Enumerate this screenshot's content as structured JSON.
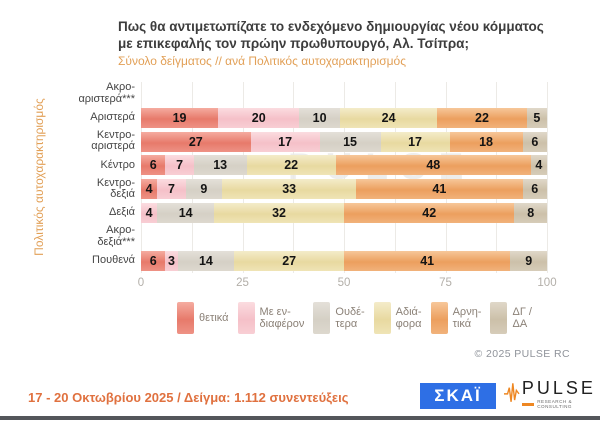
{
  "title": {
    "lines": [
      "Πως θα αντιμετωπίζατε το ενδεχόμενο δημιουργίας νέου κόμματος",
      "με επικεφαλής τον πρώην πρωθυπουργό, Αλ. Τσίπρα;"
    ],
    "subtitle": "Σύνολο δείγματος // ανά Πολιτικός αυτοχαρακτηρισμός"
  },
  "chart_data": {
    "type": "bar",
    "stacked": true,
    "orientation": "horizontal",
    "ylabel": "Πολιτικός αυτοχαρακτηρισμός",
    "xlim": [
      0,
      100
    ],
    "x_ticks": [
      0,
      25,
      50,
      75,
      100
    ],
    "grid_interval": 12.5,
    "grid": true,
    "legend_position": "bottom",
    "categories": [
      {
        "name": "Ακρο-αριστερά***",
        "lines": [
          "Ακρο-",
          "αριστερά***"
        ]
      },
      {
        "name": "Αριστερά",
        "lines": [
          "Αριστερά"
        ]
      },
      {
        "name": "Κεντρο-αριστερά",
        "lines": [
          "Κεντρο-",
          "αριστερά"
        ]
      },
      {
        "name": "Κέντρο",
        "lines": [
          "Κέντρο"
        ]
      },
      {
        "name": "Κεντρο-δεξιά",
        "lines": [
          "Κεντρο-",
          "δεξιά"
        ]
      },
      {
        "name": "Δεξιά",
        "lines": [
          "Δεξιά"
        ]
      },
      {
        "name": "Ακρο-δεξιά***",
        "lines": [
          "Ακρο-",
          "δεξιά***"
        ]
      },
      {
        "name": "Πουθενά",
        "lines": [
          "Πουθενά"
        ]
      }
    ],
    "series": [
      {
        "name": "θετικά",
        "legend_lines": [
          "θετικά"
        ],
        "colors": [
          "#F5ACA0",
          "#E77A6B",
          "#EE9285"
        ],
        "values": [
          null,
          19,
          27,
          6,
          4,
          null,
          null,
          6
        ]
      },
      {
        "name": "Με ενδιαφέρον",
        "legend_lines": [
          "Με εν-",
          "διαφέρον"
        ],
        "colors": [
          "#FBDCE0",
          "#F5C0C8",
          "#F8CED4"
        ],
        "values": [
          null,
          20,
          17,
          7,
          7,
          4,
          null,
          3
        ]
      },
      {
        "name": "Ουδέτερα",
        "legend_lines": [
          "Ουδέ-",
          "τερα"
        ],
        "colors": [
          "#E4E0D9",
          "#D5D0C5",
          "#DDD8CE"
        ],
        "values": [
          null,
          10,
          15,
          13,
          9,
          14,
          null,
          14
        ]
      },
      {
        "name": "Αδιάφορα",
        "legend_lines": [
          "Αδιά-",
          "φορα"
        ],
        "colors": [
          "#F4ECCA",
          "#E8D9A0",
          "#EFE4B6"
        ],
        "values": [
          null,
          24,
          17,
          22,
          33,
          32,
          null,
          27
        ]
      },
      {
        "name": "Αρνητικά",
        "legend_lines": [
          "Αρνη-",
          "τικά"
        ],
        "colors": [
          "#F7C79A",
          "#EC9F5E",
          "#F1B27B"
        ],
        "values": [
          null,
          22,
          18,
          48,
          41,
          42,
          null,
          41
        ]
      },
      {
        "name": "ΔΓ / ΔΑ",
        "legend_lines": [
          "ΔΓ /",
          "ΔΑ"
        ],
        "colors": [
          "#E0D8C9",
          "#CCC0A9",
          "#D6CCB9"
        ],
        "values": [
          null,
          5,
          6,
          4,
          6,
          8,
          null,
          9
        ]
      }
    ],
    "watermark": {
      "text": "PULSE",
      "subtext": "RESEARCH & CONSULTING"
    }
  },
  "axis": {
    "tick_color": "#B3AFA9",
    "grid_color": "#ECEAE6"
  },
  "annotations": {
    "copyright": "© 2025 PULSE RC"
  },
  "footer": {
    "note": "17 - 20 Οκτωβρίου 2025  /  Δείγμα:  1.112 συνεντεύξεις"
  },
  "logos": {
    "skai_text": "ΣΚΑΪ",
    "skai_bg": "#2E6FE5",
    "pulse_text": "PULSE",
    "pulse_subtext": "RESEARCH & CONSULTING",
    "pulse_accent": "#EE8722"
  }
}
